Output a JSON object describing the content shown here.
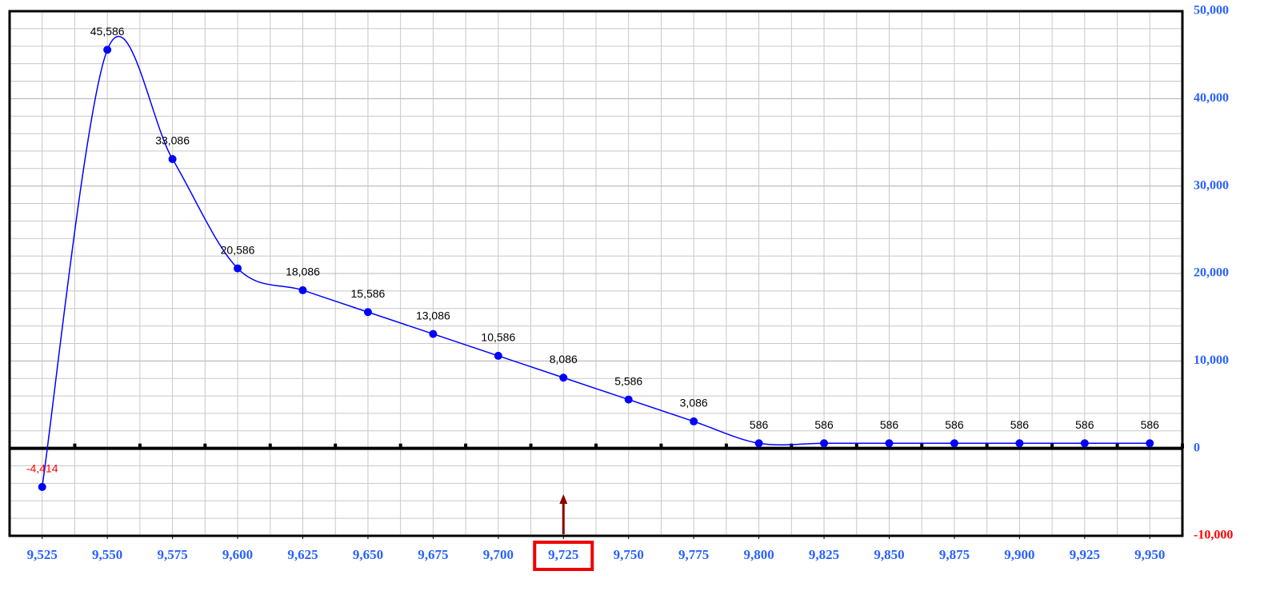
{
  "chart_data": {
    "type": "line",
    "x": [
      9525,
      9550,
      9575,
      9600,
      9625,
      9650,
      9675,
      9700,
      9725,
      9750,
      9775,
      9800,
      9825,
      9850,
      9875,
      9900,
      9925,
      9950
    ],
    "values": [
      -4414,
      45586,
      33086,
      20586,
      18086,
      15586,
      13086,
      10586,
      8086,
      5586,
      3086,
      586,
      586,
      586,
      586,
      586,
      586,
      586
    ],
    "value_labels": [
      "-4,414",
      "45,586",
      "33,086",
      "20,586",
      "18,086",
      "15,586",
      "13,086",
      "10,586",
      "8,086",
      "5,586",
      "3,086",
      "586",
      "586",
      "586",
      "586",
      "586",
      "586",
      "586"
    ],
    "color": "#0000ff",
    "xlim": [
      9512.5,
      9962.5
    ],
    "xticks": [
      {
        "value": 9525,
        "label": "9,525"
      },
      {
        "value": 9550,
        "label": "9,550"
      },
      {
        "value": 9575,
        "label": "9,575"
      },
      {
        "value": 9600,
        "label": "9,600"
      },
      {
        "value": 9625,
        "label": "9,625"
      },
      {
        "value": 9650,
        "label": "9,650"
      },
      {
        "value": 9675,
        "label": "9,675"
      },
      {
        "value": 9700,
        "label": "9,700"
      },
      {
        "value": 9725,
        "label": "9,725"
      },
      {
        "value": 9750,
        "label": "9,750"
      },
      {
        "value": 9775,
        "label": "9,775"
      },
      {
        "value": 9800,
        "label": "9,800"
      },
      {
        "value": 9825,
        "label": "9,825"
      },
      {
        "value": 9850,
        "label": "9,850"
      },
      {
        "value": 9875,
        "label": "9,875"
      },
      {
        "value": 9900,
        "label": "9,900"
      },
      {
        "value": 9925,
        "label": "9,925"
      },
      {
        "value": 9950,
        "label": "9,950"
      }
    ],
    "ylim": [
      -10000,
      50000
    ],
    "yticks": [
      {
        "value": -10000,
        "label": "-10,000"
      },
      0,
      {
        "value": 10000,
        "label": "10,000"
      },
      {
        "value": 20000,
        "label": "20,000"
      },
      {
        "value": 30000,
        "label": "30,000"
      },
      {
        "value": 40000,
        "label": "40,000"
      },
      {
        "value": 50000,
        "label": "50,000"
      }
    ],
    "grid": true,
    "marker_x": 9725
  }
}
